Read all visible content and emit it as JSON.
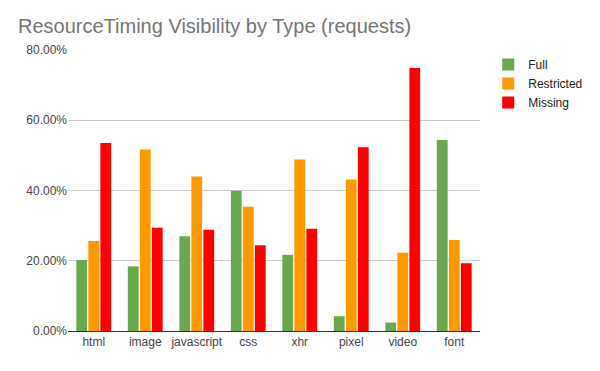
{
  "chart_data": {
    "type": "bar",
    "title": "ResourceTiming Visibility by Type (requests)",
    "categories": [
      "html",
      "image",
      "javascript",
      "css",
      "xhr",
      "pixel",
      "video",
      "font"
    ],
    "series": [
      {
        "name": "Full",
        "color": "#6aa84f",
        "values": [
          20.2,
          18.4,
          27.0,
          39.9,
          21.7,
          4.2,
          2.4,
          54.4
        ]
      },
      {
        "name": "Restricted",
        "color": "#ff9900",
        "values": [
          25.6,
          51.7,
          44.0,
          35.4,
          48.8,
          43.1,
          22.3,
          25.9
        ]
      },
      {
        "name": "Missing",
        "color": "#ff0000",
        "values": [
          53.5,
          29.4,
          28.8,
          24.4,
          29.1,
          52.3,
          74.9,
          19.3
        ]
      }
    ],
    "ylim": [
      0,
      80
    ],
    "yticks": [
      {
        "value": 0,
        "label": "0.00%"
      },
      {
        "value": 20,
        "label": "20.00%"
      },
      {
        "value": 40,
        "label": "40.00%"
      },
      {
        "value": 60,
        "label": "60.00%"
      },
      {
        "value": 80,
        "label": "80.00%"
      }
    ],
    "grid": true,
    "legend": "right"
  }
}
